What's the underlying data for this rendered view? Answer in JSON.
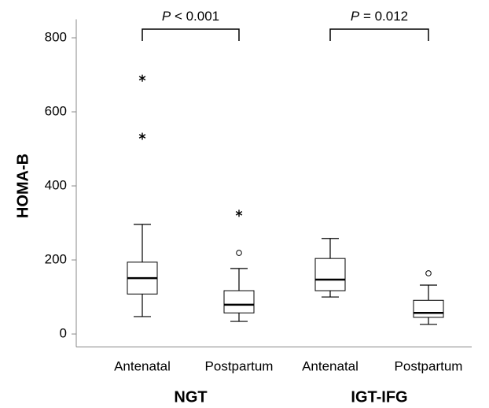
{
  "chart_data": {
    "type": "box",
    "y_label": "HOMA-B",
    "categories": [
      "Antenatal",
      "Postpartum",
      "Antenatal",
      "Postpartum"
    ],
    "groups": [
      {
        "name": "NGT",
        "categories": [
          0,
          1
        ]
      },
      {
        "name": "IGT-IFG",
        "categories": [
          2,
          3
        ]
      }
    ],
    "boxes": [
      {
        "min": 47,
        "q1": 108,
        "median": 151,
        "q3": 194,
        "max": 296,
        "outliers": [
          {
            "value": 691,
            "marker": "star"
          },
          {
            "value": 534,
            "marker": "star"
          }
        ]
      },
      {
        "min": 34,
        "q1": 57,
        "median": 79,
        "q3": 117,
        "max": 177,
        "outliers": [
          {
            "value": 219,
            "marker": "circle"
          },
          {
            "value": 326,
            "marker": "star"
          }
        ]
      },
      {
        "min": 100,
        "q1": 117,
        "median": 147,
        "q3": 204,
        "max": 258,
        "outliers": []
      },
      {
        "min": 26,
        "q1": 45,
        "median": 57,
        "q3": 91,
        "max": 132,
        "outliers": [
          {
            "value": 164,
            "marker": "circle"
          }
        ]
      }
    ],
    "annotations": [
      {
        "symbol": "P",
        "text": "< 0.001",
        "from": 0,
        "to": 1
      },
      {
        "symbol": "P",
        "text": "= 0.012",
        "from": 2,
        "to": 3
      }
    ],
    "ylim": [
      -35,
      850
    ],
    "yticks": [
      0,
      200,
      400,
      600,
      800
    ],
    "color": "#000000"
  }
}
